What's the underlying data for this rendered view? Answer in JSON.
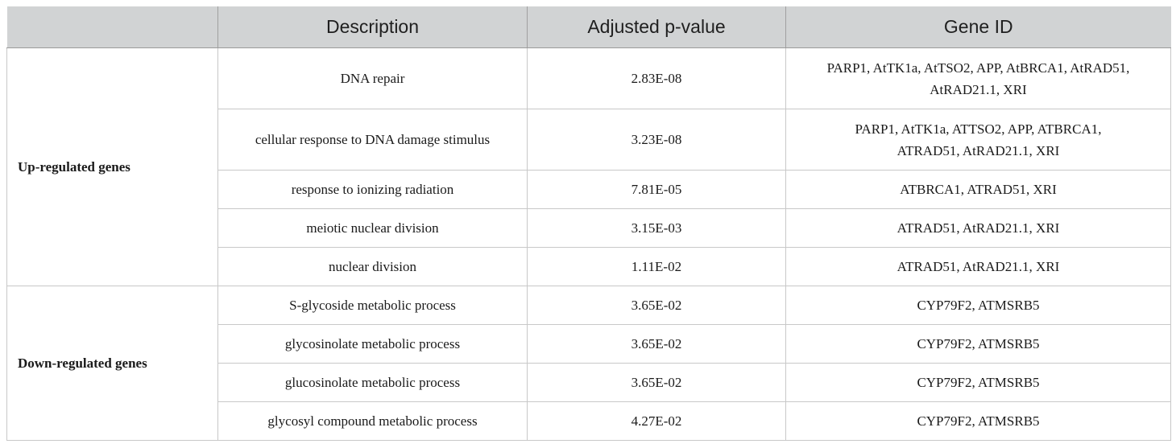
{
  "table": {
    "headers": [
      "",
      "Description",
      "Adjusted p-value",
      "Gene ID"
    ],
    "groups": [
      {
        "label": "Up-regulated genes",
        "rows": [
          {
            "description": "DNA repair",
            "p_value": "2.83E-08",
            "genes_line1": "PARP1, AtTK1a, AtTSO2, APP, AtBRCA1, AtRAD51,",
            "genes_line2": "AtRAD21.1, XRI"
          },
          {
            "description": "cellular response to DNA damage stimulus",
            "p_value": "3.23E-08",
            "genes_line1": "PARP1, AtTK1a, ATTSO2, APP, ATBRCA1,",
            "genes_line2": "ATRAD51, AtRAD21.1, XRI"
          },
          {
            "description": "response to ionizing radiation",
            "p_value": "7.81E-05",
            "genes_line1": "ATBRCA1, ATRAD51, XRI",
            "genes_line2": ""
          },
          {
            "description": "meiotic nuclear division",
            "p_value": "3.15E-03",
            "genes_line1": "ATRAD51, AtRAD21.1, XRI",
            "genes_line2": ""
          },
          {
            "description": "nuclear division",
            "p_value": "1.11E-02",
            "genes_line1": "ATRAD51, AtRAD21.1, XRI",
            "genes_line2": ""
          }
        ]
      },
      {
        "label": "Down-regulated genes",
        "rows": [
          {
            "description": "S-glycoside metabolic process",
            "p_value": "3.65E-02",
            "genes_line1": "CYP79F2, ATMSRB5",
            "genes_line2": ""
          },
          {
            "description": "glycosinolate metabolic process",
            "p_value": "3.65E-02",
            "genes_line1": "CYP79F2, ATMSRB5",
            "genes_line2": ""
          },
          {
            "description": "glucosinolate metabolic process",
            "p_value": "3.65E-02",
            "genes_line1": "CYP79F2, ATMSRB5",
            "genes_line2": ""
          },
          {
            "description": "glycosyl compound metabolic process",
            "p_value": "4.27E-02",
            "genes_line1": "CYP79F2, ATMSRB5",
            "genes_line2": ""
          }
        ]
      }
    ]
  }
}
